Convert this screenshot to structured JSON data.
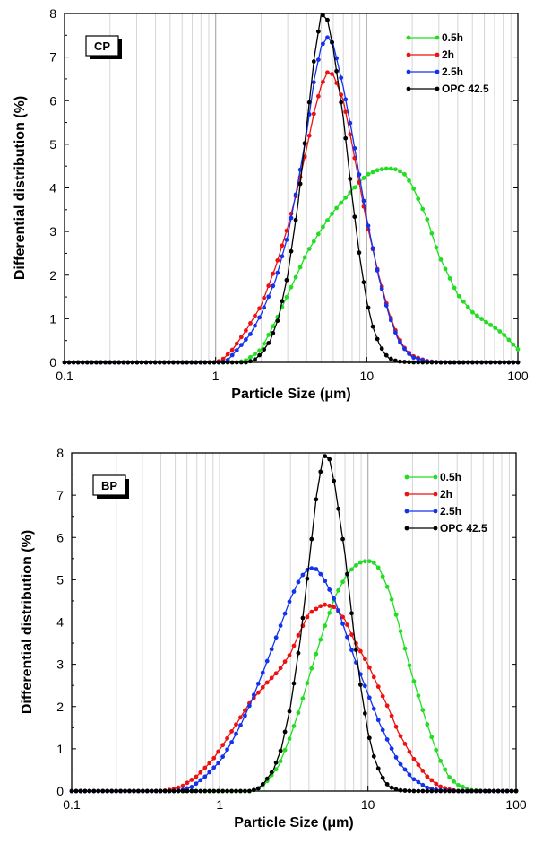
{
  "chart_data": [
    {
      "type": "line",
      "panel_label": "CP",
      "xlabel": "Particle Size (μm)",
      "ylabel": "Differential distribution (%)",
      "xscale": "log",
      "xlim": [
        0.1,
        100
      ],
      "ylim": [
        0,
        8
      ],
      "xticks": [
        "0.1",
        "1",
        "10",
        "100"
      ],
      "yticks": [
        "0",
        "1",
        "2",
        "3",
        "4",
        "5",
        "6",
        "7",
        "8"
      ],
      "grid": "vertical, log minor",
      "legend_position": "top-right",
      "series": [
        {
          "name": "0.5h",
          "color": "#22dd22",
          "points": [
            [
              0.1,
              0
            ],
            [
              1.4,
              0
            ],
            [
              1.6,
              0.05
            ],
            [
              2,
              0.3
            ],
            [
              2.5,
              0.95
            ],
            [
              3,
              1.55
            ],
            [
              4,
              2.5
            ],
            [
              5,
              3.05
            ],
            [
              6,
              3.45
            ],
            [
              8,
              3.95
            ],
            [
              10,
              4.3
            ],
            [
              12,
              4.42
            ],
            [
              14,
              4.45
            ],
            [
              16,
              4.42
            ],
            [
              18,
              4.3
            ],
            [
              20,
              4.05
            ],
            [
              25,
              3.3
            ],
            [
              30,
              2.45
            ],
            [
              40,
              1.55
            ],
            [
              50,
              1.15
            ],
            [
              60,
              0.95
            ],
            [
              70,
              0.8
            ],
            [
              80,
              0.65
            ],
            [
              100,
              0.3
            ]
          ]
        },
        {
          "name": "2h",
          "color": "#ee1111",
          "points": [
            [
              0.1,
              0
            ],
            [
              1.0,
              0
            ],
            [
              1.1,
              0.05
            ],
            [
              1.3,
              0.3
            ],
            [
              1.6,
              0.75
            ],
            [
              2,
              1.3
            ],
            [
              2.5,
              2.2
            ],
            [
              3,
              3.1
            ],
            [
              3.5,
              4.0
            ],
            [
              4,
              4.9
            ],
            [
              4.5,
              5.75
            ],
            [
              5,
              6.35
            ],
            [
              5.5,
              6.65
            ],
            [
              6,
              6.6
            ],
            [
              7,
              6.0
            ],
            [
              8,
              5.0
            ],
            [
              10,
              3.2
            ],
            [
              12,
              2.0
            ],
            [
              14,
              1.15
            ],
            [
              16,
              0.6
            ],
            [
              18,
              0.3
            ],
            [
              20,
              0.15
            ],
            [
              25,
              0.03
            ],
            [
              30,
              0
            ],
            [
              100,
              0
            ]
          ]
        },
        {
          "name": "2.5h",
          "color": "#1133ee",
          "points": [
            [
              0.1,
              0
            ],
            [
              1.1,
              0
            ],
            [
              1.2,
              0.05
            ],
            [
              1.4,
              0.3
            ],
            [
              1.7,
              0.65
            ],
            [
              2,
              1.1
            ],
            [
              2.5,
              1.9
            ],
            [
              3,
              2.9
            ],
            [
              3.5,
              4.1
            ],
            [
              4,
              5.25
            ],
            [
              4.5,
              6.5
            ],
            [
              5,
              7.25
            ],
            [
              5.5,
              7.45
            ],
            [
              6,
              7.3
            ],
            [
              7,
              6.3
            ],
            [
              8,
              5.25
            ],
            [
              10,
              3.3
            ],
            [
              12,
              1.95
            ],
            [
              14,
              1.1
            ],
            [
              16,
              0.55
            ],
            [
              18,
              0.28
            ],
            [
              20,
              0.12
            ],
            [
              25,
              0.02
            ],
            [
              30,
              0
            ],
            [
              100,
              0
            ]
          ]
        },
        {
          "name": "OPC 42.5",
          "color": "#000000",
          "points": [
            [
              0.1,
              0
            ],
            [
              1.6,
              0
            ],
            [
              1.8,
              0.05
            ],
            [
              2,
              0.2
            ],
            [
              2.3,
              0.5
            ],
            [
              2.6,
              1.0
            ],
            [
              3,
              2.0
            ],
            [
              3.5,
              3.6
            ],
            [
              4,
              5.4
            ],
            [
              4.5,
              7.0
            ],
            [
              5,
              8.0
            ],
            [
              5.5,
              7.85
            ],
            [
              6,
              7.2
            ],
            [
              7,
              5.6
            ],
            [
              8,
              3.8
            ],
            [
              9,
              2.4
            ],
            [
              10,
              1.4
            ],
            [
              11,
              0.8
            ],
            [
              12,
              0.45
            ],
            [
              13,
              0.22
            ],
            [
              14,
              0.1
            ],
            [
              16,
              0.02
            ],
            [
              20,
              0
            ],
            [
              100,
              0
            ]
          ]
        }
      ]
    },
    {
      "type": "line",
      "panel_label": "BP",
      "xlabel": "Particle Size (μm)",
      "ylabel": "Differential distribution (%)",
      "xscale": "log",
      "xlim": [
        0.1,
        100
      ],
      "ylim": [
        0,
        8
      ],
      "xticks": [
        "0.1",
        "1",
        "10",
        "100"
      ],
      "yticks": [
        "0",
        "1",
        "2",
        "3",
        "4",
        "5",
        "6",
        "7",
        "8"
      ],
      "grid": "vertical, log minor",
      "legend_position": "top-right",
      "series": [
        {
          "name": "0.5h",
          "color": "#22dd22",
          "points": [
            [
              0.1,
              0
            ],
            [
              1.6,
              0
            ],
            [
              1.8,
              0.05
            ],
            [
              2,
              0.15
            ],
            [
              2.5,
              0.6
            ],
            [
              3,
              1.3
            ],
            [
              3.5,
              2.0
            ],
            [
              4,
              2.7
            ],
            [
              5,
              3.8
            ],
            [
              6,
              4.6
            ],
            [
              7,
              5.05
            ],
            [
              8,
              5.3
            ],
            [
              9,
              5.42
            ],
            [
              10,
              5.45
            ],
            [
              11,
              5.4
            ],
            [
              12,
              5.25
            ],
            [
              14,
              4.7
            ],
            [
              16,
              4.0
            ],
            [
              18,
              3.3
            ],
            [
              20,
              2.7
            ],
            [
              25,
              1.6
            ],
            [
              30,
              0.8
            ],
            [
              35,
              0.35
            ],
            [
              40,
              0.15
            ],
            [
              50,
              0.02
            ],
            [
              60,
              0
            ],
            [
              100,
              0
            ]
          ]
        },
        {
          "name": "2h",
          "color": "#ee1111",
          "points": [
            [
              0.1,
              0
            ],
            [
              0.4,
              0
            ],
            [
              0.45,
              0.02
            ],
            [
              0.55,
              0.1
            ],
            [
              0.7,
              0.35
            ],
            [
              0.9,
              0.75
            ],
            [
              1.1,
              1.2
            ],
            [
              1.3,
              1.6
            ],
            [
              1.6,
              2.1
            ],
            [
              2,
              2.5
            ],
            [
              2.5,
              2.85
            ],
            [
              3,
              3.25
            ],
            [
              3.5,
              3.8
            ],
            [
              4,
              4.2
            ],
            [
              5,
              4.42
            ],
            [
              6,
              4.35
            ],
            [
              7,
              4.05
            ],
            [
              8,
              3.6
            ],
            [
              10,
              3.0
            ],
            [
              12,
              2.4
            ],
            [
              14,
              1.9
            ],
            [
              16,
              1.4
            ],
            [
              20,
              0.8
            ],
            [
              25,
              0.35
            ],
            [
              30,
              0.12
            ],
            [
              35,
              0.04
            ],
            [
              40,
              0
            ],
            [
              100,
              0
            ]
          ]
        },
        {
          "name": "2.5h",
          "color": "#1133ee",
          "points": [
            [
              0.1,
              0
            ],
            [
              0.5,
              0
            ],
            [
              0.55,
              0.02
            ],
            [
              0.65,
              0.1
            ],
            [
              0.8,
              0.35
            ],
            [
              1,
              0.7
            ],
            [
              1.2,
              1.15
            ],
            [
              1.4,
              1.6
            ],
            [
              1.6,
              2.05
            ],
            [
              2,
              2.9
            ],
            [
              2.5,
              3.8
            ],
            [
              3,
              4.55
            ],
            [
              3.5,
              5.05
            ],
            [
              4,
              5.28
            ],
            [
              4.5,
              5.25
            ],
            [
              5,
              5.05
            ],
            [
              6,
              4.5
            ],
            [
              7,
              3.8
            ],
            [
              8,
              3.2
            ],
            [
              10,
              2.3
            ],
            [
              12,
              1.6
            ],
            [
              14,
              1.1
            ],
            [
              16,
              0.7
            ],
            [
              20,
              0.3
            ],
            [
              25,
              0.08
            ],
            [
              30,
              0.02
            ],
            [
              40,
              0
            ],
            [
              100,
              0
            ]
          ]
        },
        {
          "name": "OPC 42.5",
          "color": "#000000",
          "points": [
            [
              0.1,
              0
            ],
            [
              1.6,
              0
            ],
            [
              1.8,
              0.05
            ],
            [
              2,
              0.2
            ],
            [
              2.3,
              0.5
            ],
            [
              2.6,
              1.0
            ],
            [
              3,
              2.0
            ],
            [
              3.5,
              3.6
            ],
            [
              4,
              5.4
            ],
            [
              4.5,
              7.0
            ],
            [
              5,
              7.95
            ],
            [
              5.5,
              7.85
            ],
            [
              6,
              7.2
            ],
            [
              7,
              5.6
            ],
            [
              8,
              3.8
            ],
            [
              9,
              2.4
            ],
            [
              10,
              1.4
            ],
            [
              11,
              0.8
            ],
            [
              12,
              0.45
            ],
            [
              13,
              0.22
            ],
            [
              14,
              0.1
            ],
            [
              16,
              0.02
            ],
            [
              20,
              0
            ],
            [
              100,
              0
            ]
          ]
        }
      ]
    }
  ]
}
